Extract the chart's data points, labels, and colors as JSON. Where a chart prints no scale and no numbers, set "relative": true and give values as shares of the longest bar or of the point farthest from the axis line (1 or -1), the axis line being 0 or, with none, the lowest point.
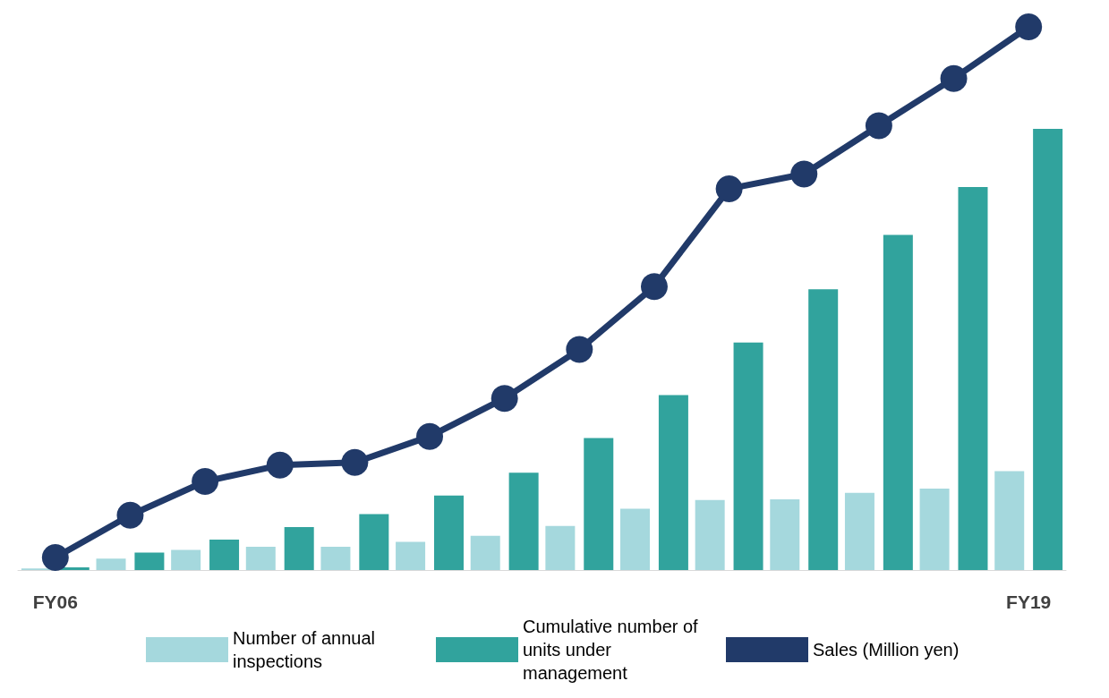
{
  "chart_data": {
    "type": "bar",
    "relative": true,
    "categories": [
      "FY06",
      null,
      null,
      null,
      null,
      null,
      null,
      null,
      null,
      null,
      null,
      null,
      null,
      "FY19"
    ],
    "series": [
      {
        "name": "Number of annual inspections",
        "color": "#a5d8dd",
        "values": [
          0.003,
          0.021,
          0.037,
          0.043,
          0.043,
          0.052,
          0.063,
          0.081,
          0.113,
          0.129,
          0.13,
          0.142,
          0.15,
          0.182
        ]
      },
      {
        "name": "Cumulative number of units under management",
        "color": "#31a39d",
        "values": [
          0.005,
          0.032,
          0.056,
          0.079,
          0.103,
          0.137,
          0.179,
          0.243,
          0.322,
          0.419,
          0.517,
          0.617,
          0.705,
          0.812
        ]
      },
      {
        "name": "Sales (Million yen)",
        "type": "line",
        "color": "#213a69",
        "marker": "circle",
        "line_style": "solid",
        "values": [
          0.023,
          0.101,
          0.163,
          0.193,
          0.198,
          0.246,
          0.316,
          0.406,
          0.522,
          0.702,
          0.729,
          0.818,
          0.905,
          1
        ]
      }
    ],
    "legend": "bottom",
    "grid": false
  }
}
